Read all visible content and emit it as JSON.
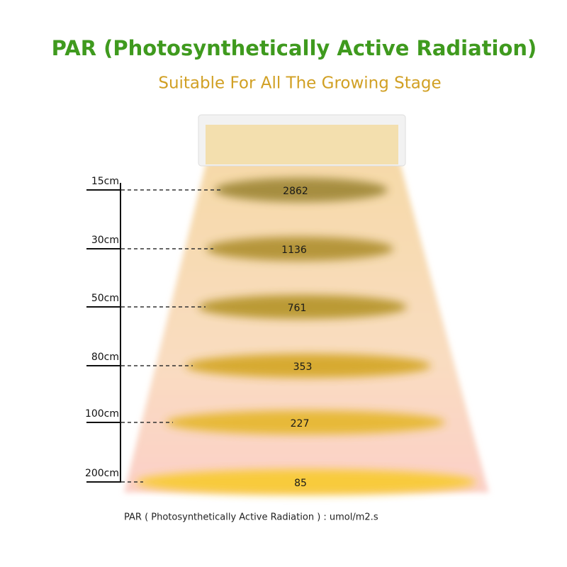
{
  "header": {
    "title": "PAR (Photosynthetically Active Radiation)",
    "subtitle": "Suitable For All The Growing Stage"
  },
  "levels": [
    {
      "distance": "15cm",
      "par": "2862"
    },
    {
      "distance": "30cm",
      "par": "1136"
    },
    {
      "distance": "50cm",
      "par": "761"
    },
    {
      "distance": "80cm",
      "par": "353"
    },
    {
      "distance": "100cm",
      "par": "227"
    },
    {
      "distance": "200cm",
      "par": "85"
    }
  ],
  "footnote": "PAR ( Photosynthetically Active Radiation ) : umol/m2.s"
}
